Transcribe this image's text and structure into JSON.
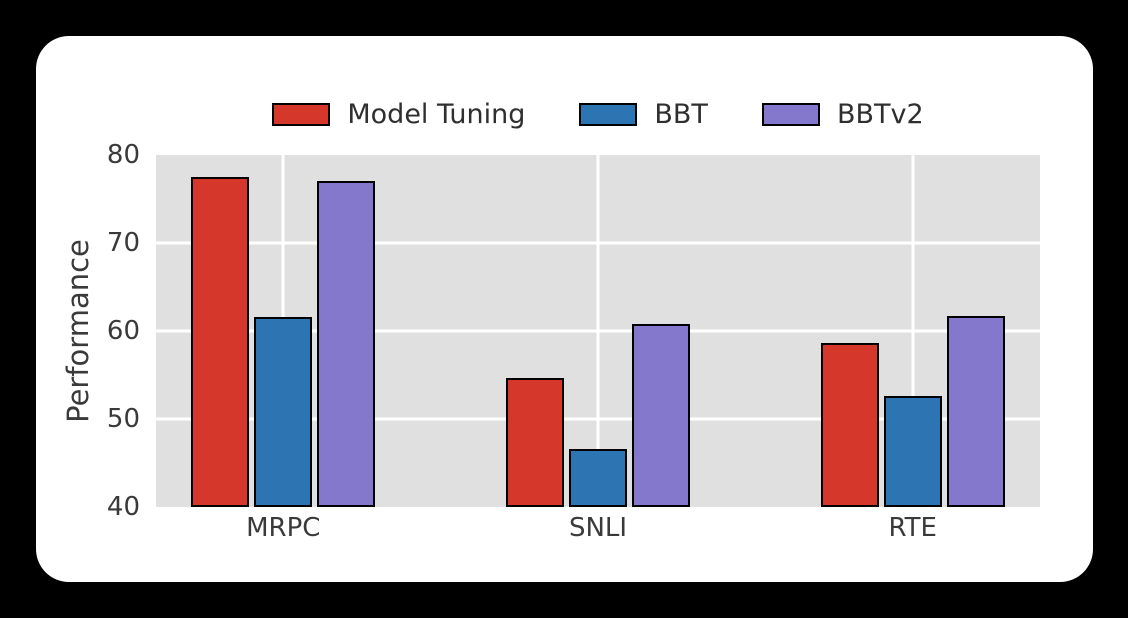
{
  "page": {
    "background_color": "#000000",
    "card_background_color": "#ffffff"
  },
  "chart_data": {
    "type": "bar",
    "title": "",
    "xlabel": "",
    "ylabel": "Performance",
    "categories": [
      "MRPC",
      "SNLI",
      "RTE"
    ],
    "series": [
      {
        "name": "Model Tuning",
        "color": "#d6372b",
        "values": [
          77.5,
          54.7,
          58.6
        ]
      },
      {
        "name": "BBT",
        "color": "#2c75b2",
        "values": [
          61.6,
          46.6,
          52.6
        ]
      },
      {
        "name": "BBTv2",
        "color": "#8478cd",
        "values": [
          77.0,
          60.8,
          61.7
        ]
      }
    ],
    "ylim": [
      40,
      80
    ],
    "yticks": [
      40,
      50,
      60,
      70,
      80
    ],
    "grid": true,
    "grid_color": "#ffffff",
    "plot_background": "#e0e0e0",
    "bar_edge_color": "#000000",
    "text_color": "#3a3a3a",
    "legend_position": "top"
  }
}
